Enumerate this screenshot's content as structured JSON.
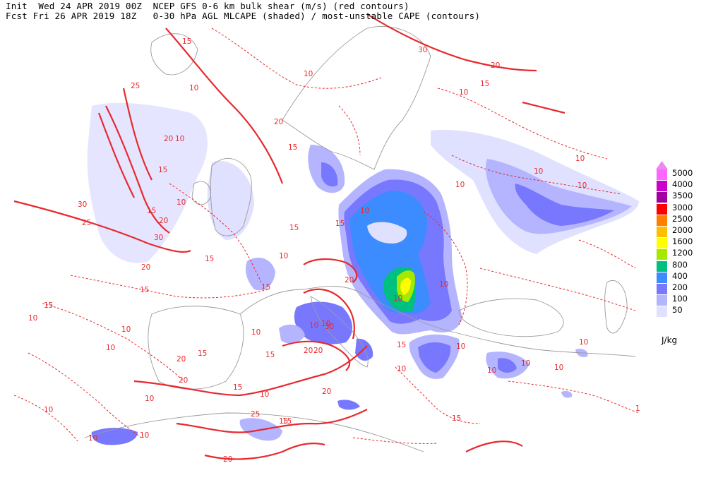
{
  "header": {
    "line1": "Init  Wed 24 APR 2019 00Z  NCEP GFS 0-6 km bulk shear (m/s) (red contours)",
    "line2": "Fcst Fri 26 APR 2019 18Z   0-30 hPa AGL MLCAPE (shaded) / most-unstable CAPE (contours)"
  },
  "legend": {
    "unit": "J/kg",
    "levels": [
      {
        "label": "5000",
        "color": "#ff66ff"
      },
      {
        "label": "4000",
        "color": "#cc00cc"
      },
      {
        "label": "3500",
        "color": "#a000a0"
      },
      {
        "label": "3000",
        "color": "#ff0000"
      },
      {
        "label": "2500",
        "color": "#ff7f00"
      },
      {
        "label": "2000",
        "color": "#ffbf00"
      },
      {
        "label": "1600",
        "color": "#ffff00"
      },
      {
        "label": "1200",
        "color": "#a5e800"
      },
      {
        "label": "800",
        "color": "#00c080"
      },
      {
        "label": "400",
        "color": "#3c8cff"
      },
      {
        "label": "200",
        "color": "#7878ff"
      },
      {
        "label": "100",
        "color": "#b4b4ff"
      },
      {
        "label": "50",
        "color": "#e0e0ff"
      }
    ],
    "top_arrow_color": "#ee88ee"
  },
  "contour_labels": {
    "l01": "15",
    "l02": "10",
    "l03": "25",
    "l04": "30",
    "l05": "20",
    "l06": "15",
    "l07": "20",
    "l08": "10",
    "l09": "15",
    "l10": "15",
    "l11": "20",
    "l12": "30",
    "l13": "10",
    "l14": "30",
    "l15": "25",
    "l16": "20",
    "l17": "10",
    "l18": "15",
    "l19": "10",
    "l20": "15",
    "l21": "10",
    "l22": "15",
    "l23": "15",
    "l24": "10",
    "l25": "15",
    "l26": "10",
    "l27": "10",
    "l28": "20",
    "l29": "15",
    "l30": "20",
    "l31": "10",
    "l32": "10",
    "l33": "15",
    "l34": "20",
    "l35": "10",
    "l36": "10",
    "l37": "10",
    "l38": "15",
    "l39": "10",
    "l40": "10",
    "l41": "10",
    "l42": "15",
    "l43": "10",
    "l44": "10",
    "l45": "20",
    "l46": "10",
    "l47": "30",
    "l48": "20",
    "l49": "15",
    "l50": "20",
    "l51": "25",
    "l52": "20",
    "l53": "15",
    "l54": "10",
    "l55": "15",
    "l56": "15",
    "l57": "10",
    "l58": "10",
    "l59": "20",
    "l60": "10",
    "l61": "10",
    "l62": "10",
    "l63": "10",
    "l64": "10",
    "l65": "15",
    "l66": "10",
    "l67": "10",
    "l68": "1"
  }
}
